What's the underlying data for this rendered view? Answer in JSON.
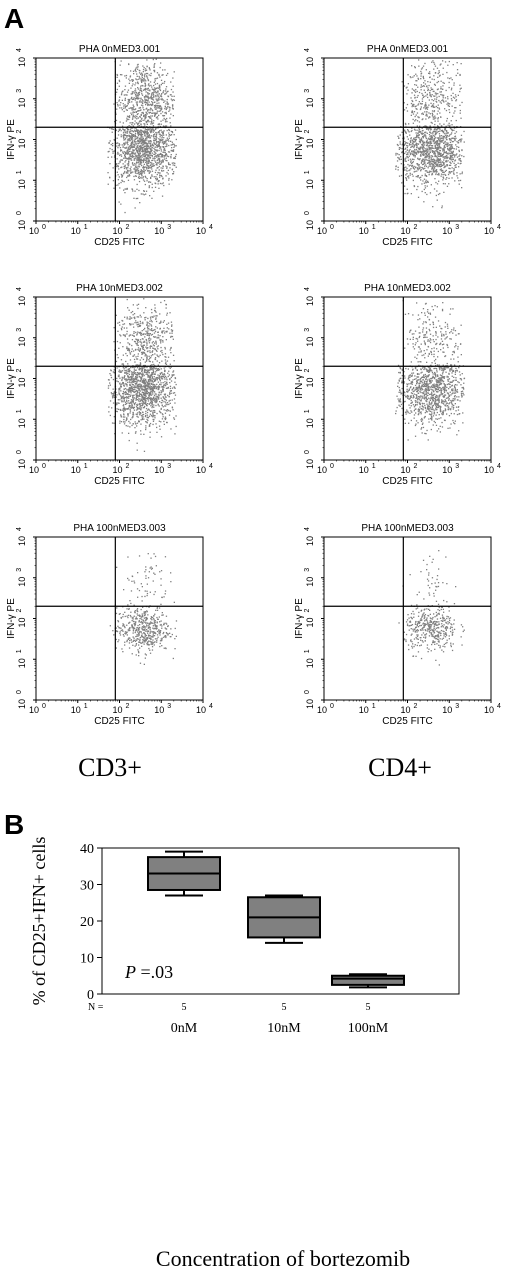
{
  "panel_a": {
    "letter": "A",
    "x_axis_label": "CD25 FITC",
    "y_axis_label": "IFN-γ PE",
    "decade_ticks": [
      "10",
      "10",
      "10",
      "10",
      "10"
    ],
    "decade_exponents": [
      "0",
      "1",
      "2",
      "3",
      "4"
    ],
    "column_labels": [
      "CD3+",
      "CD4+"
    ],
    "gate_log_x": 1.9,
    "gate_log_y": 2.3,
    "plots": [
      {
        "title": "PHA 0nMED3.001",
        "column": "CD3+",
        "dose": "0nM",
        "upper_right_density": 0.9,
        "lower_right_density": 1.0
      },
      {
        "title": "PHA 0nMED3.001",
        "column": "CD4+",
        "dose": "0nM",
        "upper_right_density": 0.5,
        "lower_right_density": 0.9
      },
      {
        "title": "PHA 10nMED3.002",
        "column": "CD3+",
        "dose": "10nM",
        "upper_right_density": 0.6,
        "lower_right_density": 1.0
      },
      {
        "title": "PHA 10nMED3.002",
        "column": "CD4+",
        "dose": "10nM",
        "upper_right_density": 0.3,
        "lower_right_density": 0.8
      },
      {
        "title": "PHA 100nMED3.003",
        "column": "CD3+",
        "dose": "100nM",
        "upper_right_density": 0.08,
        "lower_right_density": 0.35
      },
      {
        "title": "PHA 100nMED3.003",
        "column": "CD4+",
        "dose": "100nM",
        "upper_right_density": 0.06,
        "lower_right_density": 0.28
      }
    ]
  },
  "panel_b": {
    "letter": "B",
    "ylabel": "% of CD25+IFN+ cells",
    "xlabel": "Concentration of bortezomib",
    "annotation_p": "P",
    "annotation_value": " =.03",
    "n_label": "N =",
    "y_tick_labels": [
      "0",
      "10",
      "20",
      "30",
      "40"
    ]
  },
  "colors": {
    "dots": "#7f7f7f",
    "box_fill": "#808080",
    "lines": "#000000"
  },
  "chart_data": [
    {
      "type": "scatter",
      "description_free": true,
      "x_axis": {
        "label": "CD25 FITC",
        "scale": "log",
        "range": [
          1,
          10000
        ]
      },
      "y_axis": {
        "label": "IFN-γ PE",
        "scale": "log",
        "range": [
          1,
          10000
        ]
      },
      "panels": [
        "PHA 0nMED3.001",
        "PHA 0nMED3.001",
        "PHA 10nMED3.002",
        "PHA 10nMED3.002",
        "PHA 100nMED3.003",
        "PHA 100nMED3.003"
      ],
      "columns": [
        "CD3+",
        "CD4+"
      ]
    },
    {
      "type": "box",
      "categories": [
        "0nM",
        "10nM",
        "100nM"
      ],
      "n": [
        "5",
        "5",
        "5"
      ],
      "series": [
        {
          "min": 27,
          "q1": 28.5,
          "median": 33,
          "q3": 37.5,
          "max": 39
        },
        {
          "min": 14,
          "q1": 15.5,
          "median": 21,
          "q3": 26.5,
          "max": 27
        },
        {
          "min": 1.8,
          "q1": 2.5,
          "median": 4.2,
          "q3": 5.0,
          "max": 5.4
        }
      ],
      "ylabel": "% of CD25+IFN+ cells",
      "xlabel": "Concentration of bortezomib",
      "ylim": [
        0,
        40
      ],
      "annotation": "P =.03"
    }
  ]
}
